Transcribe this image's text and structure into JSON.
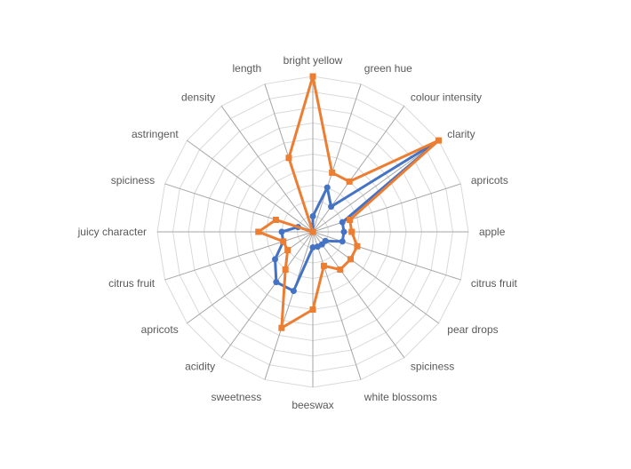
{
  "chart_data": {
    "type": "radar",
    "title": "",
    "axes": [
      "bright yellow",
      "green hue",
      "colour intensity",
      "clarity",
      "apricots",
      "apple",
      "citrus fruit",
      "pear drops",
      "spiciness",
      "white blossoms",
      "beeswax",
      "sweetness",
      "acidity",
      "apricots",
      "citrus fruit",
      "juicy character",
      "spiciness",
      "astringent",
      "density",
      "length"
    ],
    "rlim": [
      0,
      10
    ],
    "grid": true,
    "legend": "none",
    "series": [
      {
        "color": "#4472C4",
        "marker": "circle",
        "values": [
          1,
          3,
          2,
          10,
          2,
          2,
          2,
          1,
          1,
          1,
          1,
          4,
          4,
          3,
          2,
          2,
          1,
          0,
          0,
          0
        ]
      },
      {
        "color": "#ED7D31",
        "marker": "square",
        "values": [
          10,
          4,
          4,
          10,
          2.5,
          2.5,
          3,
          3,
          3,
          2.3,
          5,
          6.5,
          3,
          2,
          2,
          3.5,
          2.5,
          0,
          0,
          5
        ]
      }
    ]
  }
}
